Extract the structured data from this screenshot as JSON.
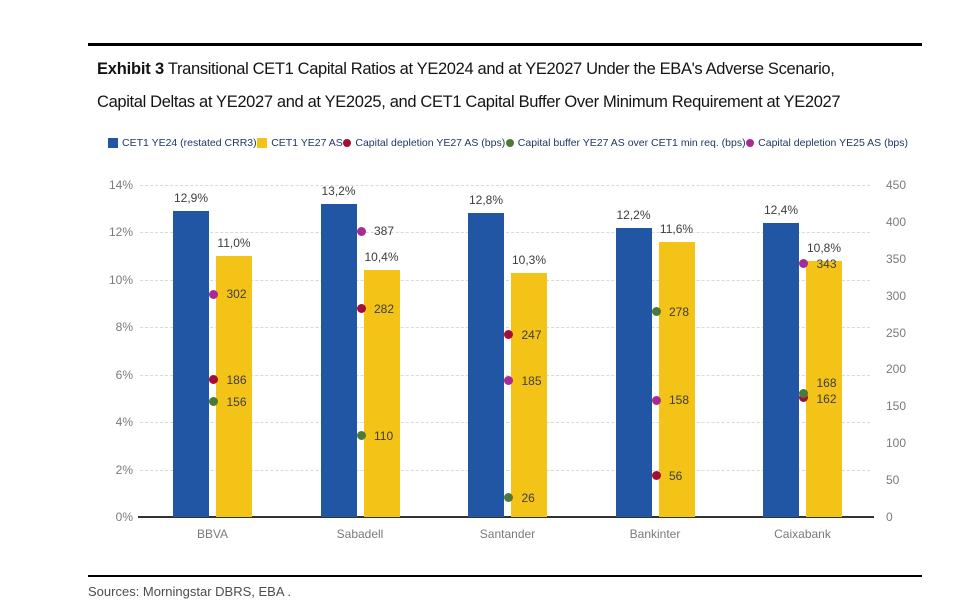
{
  "header": {
    "exhibit_label": "Exhibit 3",
    "title_line1": "Transitional CET1 Capital Ratios at YE2024 and at YE2027 Under the EBA's Adverse Scenario,",
    "title_line2": "Capital Deltas at YE2027 and at YE2025, and CET1 Capital Buffer Over Minimum Requirement at YE2027"
  },
  "legend": {
    "items": [
      {
        "label": "CET1 YE24 (restated CRR3)",
        "shape": "square",
        "color": "#2156a4"
      },
      {
        "label": "CET1 YE27 AS",
        "shape": "square",
        "color": "#f3c317"
      },
      {
        "label": "Capital depletion YE27 AS (bps)",
        "shape": "circle",
        "color": "#a50d33"
      },
      {
        "label": "Capital buffer YE27 AS over CET1 min req. (bps)",
        "shape": "circle",
        "color": "#4c7a34"
      },
      {
        "label": "Capital depletion YE25 AS (bps)",
        "shape": "circle",
        "color": "#a62c94"
      }
    ]
  },
  "chart_data": {
    "type": "bar",
    "title": "Transitional CET1 Capital Ratios at YE2024 and at YE2027 Under the EBA's Adverse Scenario, Capital Deltas at YE2027 and at YE2025, and CET1 Capital Buffer Over Minimum Requirement at YE2027",
    "categories": [
      "BBVA",
      "Sabadell",
      "Santander",
      "Bankinter",
      "Caixabank"
    ],
    "bar_series": [
      {
        "name": "CET1 YE24 (restated CRR3)",
        "short": "ye24",
        "color": "#2156a4",
        "values": [
          12.9,
          13.2,
          12.8,
          12.2,
          12.4
        ],
        "labels": [
          "12,9%",
          "13,2%",
          "12,8%",
          "12,2%",
          "12,4%"
        ]
      },
      {
        "name": "CET1 YE27 AS",
        "short": "ye27",
        "color": "#f3c317",
        "values": [
          11.0,
          10.4,
          10.3,
          11.6,
          10.8
        ],
        "labels": [
          "11,0%",
          "10,4%",
          "10,3%",
          "11,6%",
          "10,8%"
        ]
      }
    ],
    "dot_series": [
      {
        "name": "Capital depletion YE27 AS (bps)",
        "short": "depletion-ye27",
        "color": "#a50d33",
        "values": [
          186,
          282,
          247,
          56,
          162
        ],
        "label_dy": [
          0,
          0,
          0,
          0,
          2
        ]
      },
      {
        "name": "Capital buffer YE27 AS over CET1 min req. (bps)",
        "short": "buffer-ye27",
        "color": "#4c7a34",
        "values": [
          156,
          110,
          26,
          278,
          168
        ],
        "label_dy": [
          0,
          0,
          0,
          0,
          -10
        ]
      },
      {
        "name": "Capital depletion YE25 AS (bps)",
        "short": "depletion-ye25",
        "color": "#a62c94",
        "values": [
          302,
          387,
          185,
          158,
          343
        ],
        "label_dy": [
          0,
          0,
          0,
          0,
          0
        ]
      }
    ],
    "left_axis": {
      "ticks": [
        "14%",
        "12%",
        "10%",
        "8%",
        "6%",
        "4%",
        "2%",
        "0%"
      ],
      "min": 0,
      "max": 14,
      "unit": "%"
    },
    "right_axis": {
      "ticks": [
        "450",
        "400",
        "350",
        "300",
        "250",
        "200",
        "150",
        "100",
        "50",
        "0"
      ],
      "min": 0,
      "max": 450,
      "unit": "bps"
    },
    "grid": "horizontal-dashed",
    "legend_position": "top"
  },
  "footer": {
    "sources": "Sources: Morningstar DBRS, EBA ."
  },
  "colors": {
    "grid": "#d9d9d9",
    "axis_line": "#333333",
    "tick_text": "#7a7a7a",
    "value_text": "#3d3d3d",
    "legend_text": "#1f3864",
    "rule": "#000000"
  }
}
